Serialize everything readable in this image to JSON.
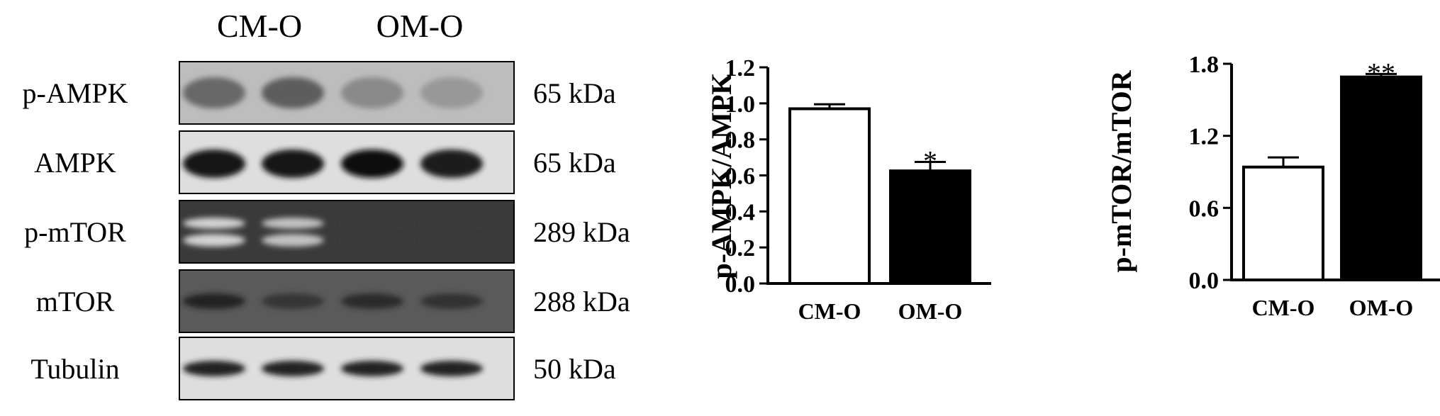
{
  "blot": {
    "group_labels": [
      "CM-O",
      "OM-O"
    ],
    "rows": [
      {
        "label": "p-AMPK",
        "size": "65 kDa",
        "lane_intensity": [
          0.62,
          0.66,
          0.48,
          0.42
        ],
        "double_band": false
      },
      {
        "label": "AMPK",
        "size": "65 kDa",
        "lane_intensity": [
          0.95,
          0.95,
          0.98,
          0.93
        ],
        "double_band": false
      },
      {
        "label": "p-mTOR",
        "size": "289 kDa",
        "lane_intensity": [
          0.18,
          0.25,
          0.8,
          0.8
        ],
        "double_band": true
      },
      {
        "label": "mTOR",
        "size": "288 kDa",
        "lane_intensity": [
          0.9,
          0.82,
          0.86,
          0.84
        ],
        "double_band": false
      },
      {
        "label": "Tubulin",
        "size": "50 kDa",
        "lane_intensity": [
          0.9,
          0.9,
          0.9,
          0.9
        ],
        "double_band": false
      }
    ]
  },
  "chart_data": [
    {
      "type": "bar",
      "categories": [
        "CM-O",
        "OM-O"
      ],
      "values": [
        0.97,
        0.625
      ],
      "errors": [
        0.025,
        0.05
      ],
      "significance": [
        "",
        "*"
      ],
      "bar_fills": [
        "#ffffff",
        "#000000"
      ],
      "xlabel": "",
      "ylabel": "p-AMPK/AMPK",
      "ylim": [
        0,
        1.2
      ],
      "yticks": [
        0.0,
        0.2,
        0.4,
        0.6,
        0.8,
        1.0,
        1.2
      ],
      "tick_decimals": 1
    },
    {
      "type": "bar",
      "categories": [
        "CM-O",
        "OM-O"
      ],
      "values": [
        0.94,
        1.69
      ],
      "errors": [
        0.08,
        0.025
      ],
      "significance": [
        "",
        "**"
      ],
      "bar_fills": [
        "#ffffff",
        "#000000"
      ],
      "xlabel": "",
      "ylabel": "p-mTOR/mTOR",
      "ylim": [
        0,
        1.8
      ],
      "yticks": [
        0.0,
        0.6,
        1.2,
        1.8
      ],
      "tick_decimals": 1
    }
  ]
}
